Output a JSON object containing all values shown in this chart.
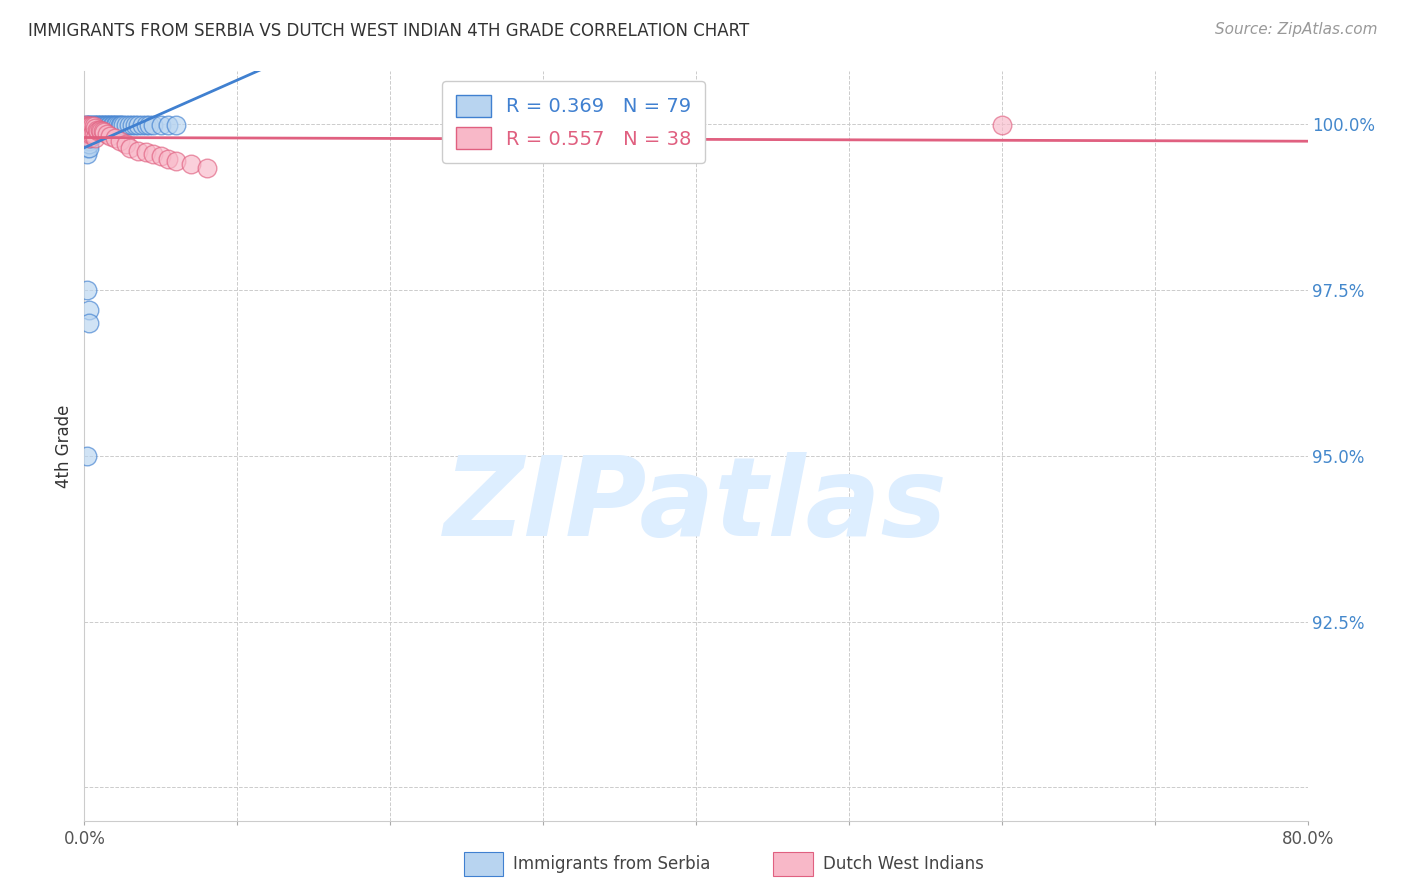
{
  "title": "IMMIGRANTS FROM SERBIA VS DUTCH WEST INDIAN 4TH GRADE CORRELATION CHART",
  "source": "Source: ZipAtlas.com",
  "ylabel": "4th Grade",
  "xlim": [
    0.0,
    0.8
  ],
  "ylim": [
    0.895,
    1.008
  ],
  "xticks": [
    0.0,
    0.1,
    0.2,
    0.3,
    0.4,
    0.5,
    0.6,
    0.7,
    0.8
  ],
  "xticklabels": [
    "0.0%",
    "",
    "",
    "",
    "",
    "",
    "",
    "",
    "80.0%"
  ],
  "yticks": [
    0.9,
    0.925,
    0.95,
    0.975,
    1.0
  ],
  "yticklabels": [
    "",
    "92.5%",
    "95.0%",
    "97.5%",
    "100.0%"
  ],
  "legend1_label": "R = 0.369   N = 79",
  "legend2_label": "R = 0.557   N = 38",
  "legend_color1": "#b8d4f0",
  "legend_color2": "#f8b8c8",
  "line_color1": "#4080d0",
  "line_color2": "#e06080",
  "watermark_color": "#ddeeff",
  "grid_color": "#cccccc",
  "serbia_x": [
    0.001,
    0.001,
    0.001,
    0.001,
    0.001,
    0.001,
    0.001,
    0.001,
    0.001,
    0.001,
    0.001,
    0.001,
    0.002,
    0.002,
    0.002,
    0.002,
    0.002,
    0.002,
    0.002,
    0.002,
    0.003,
    0.003,
    0.003,
    0.003,
    0.003,
    0.003,
    0.003,
    0.003,
    0.003,
    0.003,
    0.004,
    0.004,
    0.004,
    0.004,
    0.004,
    0.005,
    0.005,
    0.005,
    0.005,
    0.006,
    0.006,
    0.007,
    0.007,
    0.008,
    0.008,
    0.009,
    0.009,
    0.01,
    0.011,
    0.012,
    0.013,
    0.014,
    0.015,
    0.016,
    0.017,
    0.018,
    0.019,
    0.02,
    0.021,
    0.022,
    0.023,
    0.024,
    0.025,
    0.027,
    0.029,
    0.031,
    0.033,
    0.035,
    0.038,
    0.04,
    0.042,
    0.045,
    0.05,
    0.055,
    0.06,
    0.002,
    0.003,
    0.003,
    0.002
  ],
  "serbia_y": [
    0.9999,
    0.9998,
    0.9997,
    0.9996,
    0.9995,
    0.9994,
    0.9993,
    0.9992,
    0.9991,
    0.999,
    0.9989,
    0.9988,
    0.9999,
    0.9998,
    0.9997,
    0.9996,
    0.9985,
    0.9975,
    0.9965,
    0.9955,
    0.9999,
    0.9998,
    0.9997,
    0.9996,
    0.999,
    0.9985,
    0.998,
    0.9975,
    0.997,
    0.9965,
    0.9999,
    0.9998,
    0.999,
    0.9985,
    0.998,
    0.9999,
    0.9998,
    0.999,
    0.9985,
    0.9999,
    0.9998,
    0.9999,
    0.999,
    0.9999,
    0.999,
    0.9999,
    0.999,
    0.9999,
    0.9999,
    0.9999,
    0.9999,
    0.9999,
    0.9999,
    0.9999,
    0.9999,
    0.9999,
    0.9999,
    0.9999,
    0.9999,
    0.9999,
    0.9999,
    0.9999,
    0.9999,
    0.9999,
    0.9999,
    0.9999,
    0.9999,
    0.9999,
    0.9999,
    0.9999,
    0.9999,
    0.9999,
    0.9999,
    0.9999,
    0.9999,
    0.975,
    0.972,
    0.97,
    0.95
  ],
  "dutch_x": [
    0.001,
    0.001,
    0.001,
    0.002,
    0.002,
    0.002,
    0.003,
    0.003,
    0.003,
    0.004,
    0.004,
    0.005,
    0.005,
    0.006,
    0.006,
    0.007,
    0.007,
    0.008,
    0.009,
    0.01,
    0.011,
    0.012,
    0.013,
    0.015,
    0.017,
    0.02,
    0.023,
    0.027,
    0.03,
    0.035,
    0.04,
    0.045,
    0.05,
    0.055,
    0.06,
    0.07,
    0.08,
    0.6
  ],
  "dutch_y": [
    0.9999,
    0.9995,
    0.999,
    0.9998,
    0.999,
    0.9985,
    0.9998,
    0.999,
    0.998,
    0.9998,
    0.9985,
    0.9998,
    0.9985,
    0.9998,
    0.9985,
    0.9995,
    0.998,
    0.9992,
    0.999,
    0.9992,
    0.999,
    0.999,
    0.9988,
    0.9985,
    0.9982,
    0.998,
    0.9975,
    0.997,
    0.9965,
    0.996,
    0.9958,
    0.9955,
    0.9952,
    0.9948,
    0.9945,
    0.994,
    0.9935,
    0.9999
  ]
}
